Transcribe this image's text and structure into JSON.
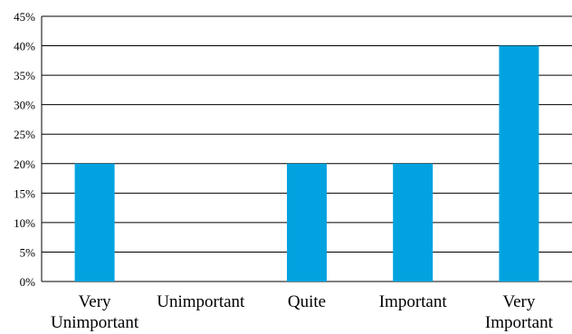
{
  "chart_data": {
    "type": "bar",
    "categories": [
      [
        "Very",
        "Unimportant"
      ],
      [
        "Unimportant"
      ],
      [
        "Quite"
      ],
      [
        "Important"
      ],
      [
        "Very",
        "Important"
      ]
    ],
    "values": [
      20,
      0,
      20,
      20,
      40
    ],
    "y_ticks": [
      "0%",
      "5%",
      "10%",
      "15%",
      "20%",
      "25%",
      "30%",
      "35%",
      "40%",
      "45%"
    ],
    "ylim": [
      0,
      45
    ],
    "grid": true,
    "bar_color": "#00A3E0",
    "title": "",
    "xlabel": "",
    "ylabel": ""
  }
}
